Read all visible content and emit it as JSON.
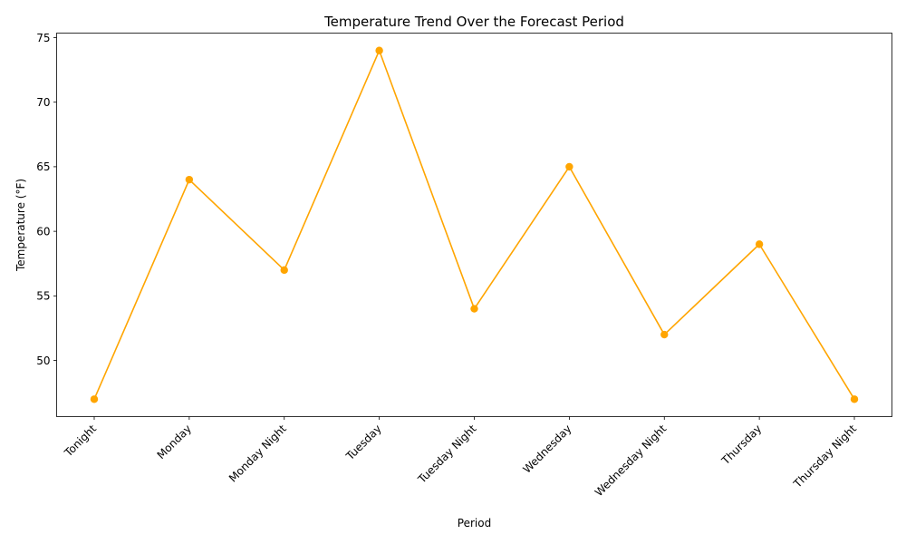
{
  "chart_data": {
    "type": "line",
    "title": "Temperature Trend Over the Forecast Period",
    "xlabel": "Period",
    "ylabel": "Temperature (°F)",
    "categories": [
      "Tonight",
      "Monday",
      "Monday Night",
      "Tuesday",
      "Tuesday Night",
      "Wednesday",
      "Wednesday Night",
      "Thursday",
      "Thursday Night"
    ],
    "values": [
      47,
      64,
      57,
      74,
      54,
      65,
      52,
      59,
      47
    ],
    "ylim": [
      45.65,
      75.35
    ],
    "yticks": [
      50,
      55,
      60,
      65,
      70,
      75
    ],
    "grid": false,
    "legend": "none",
    "line_color": "#ffa500",
    "marker": "circle"
  }
}
